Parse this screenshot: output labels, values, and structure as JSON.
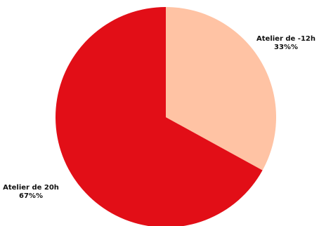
{
  "chart_data": {
    "type": "pie",
    "title": "",
    "slices": [
      {
        "label": "Atelier de -12h",
        "value": 33,
        "value_label": "33%%",
        "color": "#ffc3a4"
      },
      {
        "label": "Atelier de 20h",
        "value": 67,
        "value_label": "67%%",
        "color": "#e20e17"
      }
    ],
    "start_angle_deg": 0,
    "direction": "clockwise",
    "legend": "none",
    "labels_position": "outside"
  }
}
